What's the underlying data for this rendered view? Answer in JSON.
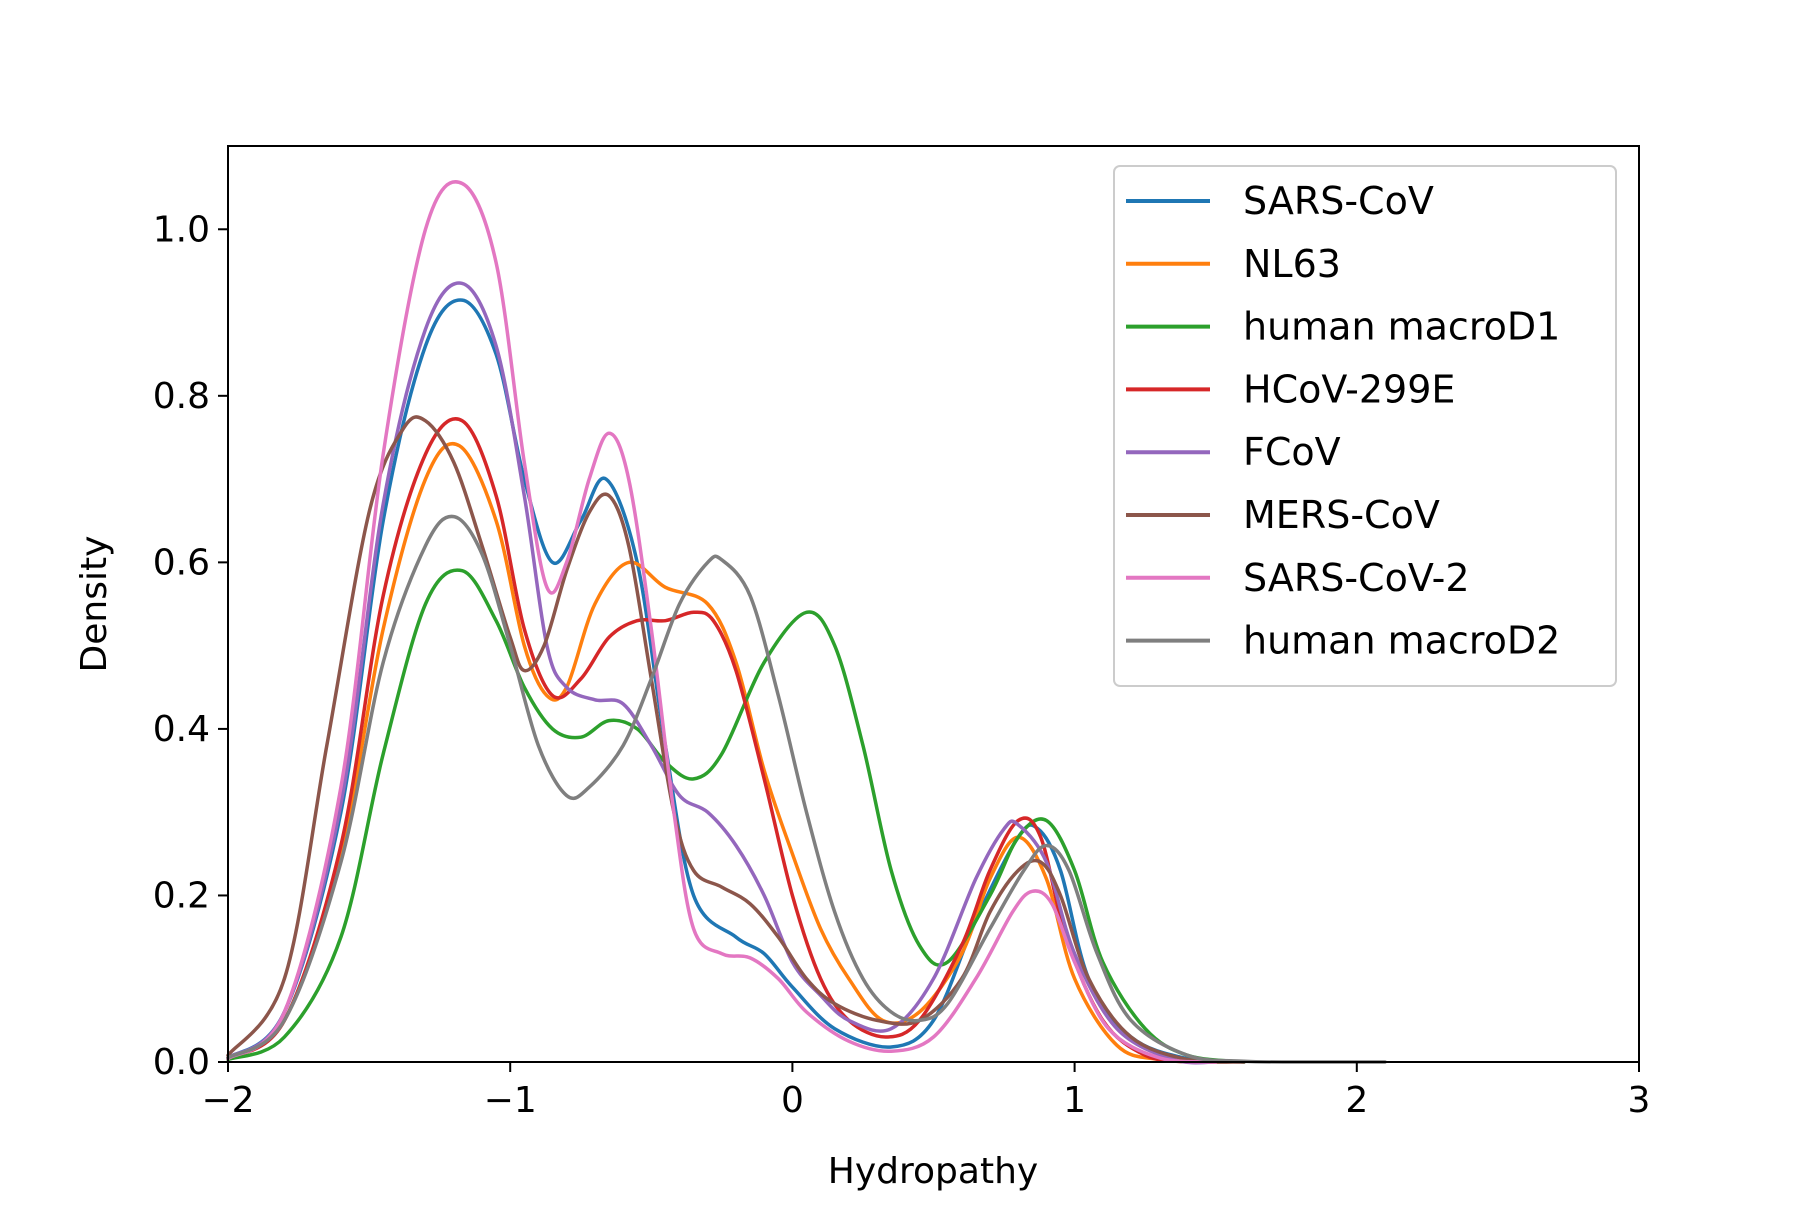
{
  "chart_data": {
    "type": "line",
    "title": "",
    "xlabel": "Hydropathy",
    "ylabel": "Density",
    "xlim": [
      -2,
      3
    ],
    "ylim": [
      0,
      1.1
    ],
    "xticks": [
      -2,
      -1,
      0,
      1,
      2,
      3
    ],
    "xtick_labels": [
      "−2",
      "−1",
      "0",
      "1",
      "2",
      "3"
    ],
    "yticks": [
      0.0,
      0.2,
      0.4,
      0.6,
      0.8,
      1.0
    ],
    "ytick_labels": [
      "0.0",
      "0.2",
      "0.4",
      "0.6",
      "0.8",
      "1.0"
    ],
    "grid": false,
    "legend_position": "top-right",
    "series": [
      {
        "name": "SARS-CoV",
        "color": "#1f77b4",
        "points": [
          [
            -2.0,
            0.005
          ],
          [
            -1.8,
            0.06
          ],
          [
            -1.6,
            0.3
          ],
          [
            -1.45,
            0.65
          ],
          [
            -1.3,
            0.86
          ],
          [
            -1.17,
            0.915
          ],
          [
            -1.05,
            0.85
          ],
          [
            -0.95,
            0.7
          ],
          [
            -0.85,
            0.6
          ],
          [
            -0.75,
            0.65
          ],
          [
            -0.66,
            0.7
          ],
          [
            -0.55,
            0.6
          ],
          [
            -0.45,
            0.38
          ],
          [
            -0.35,
            0.2
          ],
          [
            -0.2,
            0.15
          ],
          [
            -0.1,
            0.13
          ],
          [
            0.0,
            0.09
          ],
          [
            0.15,
            0.04
          ],
          [
            0.35,
            0.018
          ],
          [
            0.5,
            0.05
          ],
          [
            0.65,
            0.17
          ],
          [
            0.8,
            0.27
          ],
          [
            0.87,
            0.28
          ],
          [
            0.95,
            0.23
          ],
          [
            1.05,
            0.1
          ],
          [
            1.2,
            0.03
          ],
          [
            1.4,
            0.004
          ],
          [
            1.6,
            0.0
          ]
        ]
      },
      {
        "name": "NL63",
        "color": "#ff7f0e",
        "points": [
          [
            -2.0,
            0.005
          ],
          [
            -1.8,
            0.05
          ],
          [
            -1.6,
            0.25
          ],
          [
            -1.45,
            0.52
          ],
          [
            -1.3,
            0.7
          ],
          [
            -1.18,
            0.74
          ],
          [
            -1.05,
            0.65
          ],
          [
            -0.95,
            0.5
          ],
          [
            -0.87,
            0.44
          ],
          [
            -0.8,
            0.45
          ],
          [
            -0.7,
            0.55
          ],
          [
            -0.58,
            0.6
          ],
          [
            -0.45,
            0.57
          ],
          [
            -0.3,
            0.55
          ],
          [
            -0.2,
            0.48
          ],
          [
            -0.1,
            0.35
          ],
          [
            0.0,
            0.25
          ],
          [
            0.1,
            0.16
          ],
          [
            0.2,
            0.1
          ],
          [
            0.32,
            0.05
          ],
          [
            0.45,
            0.06
          ],
          [
            0.6,
            0.13
          ],
          [
            0.7,
            0.22
          ],
          [
            0.8,
            0.27
          ],
          [
            0.9,
            0.22
          ],
          [
            1.0,
            0.1
          ],
          [
            1.15,
            0.02
          ],
          [
            1.3,
            0.003
          ],
          [
            1.5,
            0.0
          ]
        ]
      },
      {
        "name": "human macroD1",
        "color": "#2ca02c",
        "points": [
          [
            -2.0,
            0.003
          ],
          [
            -1.8,
            0.03
          ],
          [
            -1.6,
            0.15
          ],
          [
            -1.45,
            0.37
          ],
          [
            -1.3,
            0.55
          ],
          [
            -1.17,
            0.59
          ],
          [
            -1.05,
            0.53
          ],
          [
            -0.95,
            0.45
          ],
          [
            -0.85,
            0.4
          ],
          [
            -0.75,
            0.39
          ],
          [
            -0.65,
            0.41
          ],
          [
            -0.55,
            0.4
          ],
          [
            -0.45,
            0.36
          ],
          [
            -0.35,
            0.34
          ],
          [
            -0.25,
            0.37
          ],
          [
            -0.1,
            0.48
          ],
          [
            0.05,
            0.54
          ],
          [
            0.15,
            0.5
          ],
          [
            0.25,
            0.38
          ],
          [
            0.35,
            0.23
          ],
          [
            0.45,
            0.14
          ],
          [
            0.55,
            0.12
          ],
          [
            0.7,
            0.2
          ],
          [
            0.8,
            0.27
          ],
          [
            0.9,
            0.29
          ],
          [
            1.0,
            0.23
          ],
          [
            1.1,
            0.12
          ],
          [
            1.25,
            0.04
          ],
          [
            1.4,
            0.008
          ],
          [
            1.6,
            0.0
          ]
        ]
      },
      {
        "name": "HCoV-299E",
        "color": "#d62728",
        "points": [
          [
            -2.0,
            0.005
          ],
          [
            -1.8,
            0.05
          ],
          [
            -1.6,
            0.26
          ],
          [
            -1.45,
            0.56
          ],
          [
            -1.3,
            0.73
          ],
          [
            -1.17,
            0.77
          ],
          [
            -1.05,
            0.68
          ],
          [
            -0.95,
            0.52
          ],
          [
            -0.85,
            0.44
          ],
          [
            -0.75,
            0.46
          ],
          [
            -0.65,
            0.51
          ],
          [
            -0.55,
            0.53
          ],
          [
            -0.45,
            0.53
          ],
          [
            -0.35,
            0.54
          ],
          [
            -0.28,
            0.53
          ],
          [
            -0.2,
            0.47
          ],
          [
            -0.1,
            0.34
          ],
          [
            0.0,
            0.2
          ],
          [
            0.1,
            0.1
          ],
          [
            0.2,
            0.05
          ],
          [
            0.33,
            0.03
          ],
          [
            0.45,
            0.05
          ],
          [
            0.6,
            0.14
          ],
          [
            0.7,
            0.23
          ],
          [
            0.8,
            0.29
          ],
          [
            0.88,
            0.27
          ],
          [
            0.97,
            0.15
          ],
          [
            1.1,
            0.05
          ],
          [
            1.25,
            0.008
          ],
          [
            1.4,
            0.0
          ]
        ]
      },
      {
        "name": "FCoV",
        "color": "#9467bd",
        "points": [
          [
            -2.0,
            0.005
          ],
          [
            -1.8,
            0.06
          ],
          [
            -1.6,
            0.31
          ],
          [
            -1.45,
            0.67
          ],
          [
            -1.3,
            0.88
          ],
          [
            -1.17,
            0.935
          ],
          [
            -1.05,
            0.86
          ],
          [
            -0.95,
            0.68
          ],
          [
            -0.87,
            0.5
          ],
          [
            -0.8,
            0.45
          ],
          [
            -0.7,
            0.435
          ],
          [
            -0.6,
            0.43
          ],
          [
            -0.5,
            0.38
          ],
          [
            -0.4,
            0.32
          ],
          [
            -0.3,
            0.3
          ],
          [
            -0.2,
            0.26
          ],
          [
            -0.1,
            0.2
          ],
          [
            0.0,
            0.12
          ],
          [
            0.1,
            0.08
          ],
          [
            0.2,
            0.05
          ],
          [
            0.35,
            0.04
          ],
          [
            0.5,
            0.1
          ],
          [
            0.65,
            0.22
          ],
          [
            0.75,
            0.28
          ],
          [
            0.8,
            0.285
          ],
          [
            0.9,
            0.24
          ],
          [
            1.0,
            0.13
          ],
          [
            1.15,
            0.04
          ],
          [
            1.35,
            0.003
          ],
          [
            1.5,
            0.0
          ]
        ]
      },
      {
        "name": "MERS-CoV",
        "color": "#8c564b",
        "points": [
          [
            -2.0,
            0.008
          ],
          [
            -1.8,
            0.1
          ],
          [
            -1.65,
            0.38
          ],
          [
            -1.5,
            0.66
          ],
          [
            -1.38,
            0.76
          ],
          [
            -1.3,
            0.77
          ],
          [
            -1.2,
            0.72
          ],
          [
            -1.1,
            0.62
          ],
          [
            -1.0,
            0.51
          ],
          [
            -0.95,
            0.47
          ],
          [
            -0.88,
            0.5
          ],
          [
            -0.8,
            0.59
          ],
          [
            -0.72,
            0.66
          ],
          [
            -0.65,
            0.68
          ],
          [
            -0.58,
            0.62
          ],
          [
            -0.5,
            0.46
          ],
          [
            -0.42,
            0.3
          ],
          [
            -0.35,
            0.23
          ],
          [
            -0.25,
            0.21
          ],
          [
            -0.15,
            0.19
          ],
          [
            -0.05,
            0.15
          ],
          [
            0.05,
            0.1
          ],
          [
            0.15,
            0.07
          ],
          [
            0.3,
            0.05
          ],
          [
            0.45,
            0.05
          ],
          [
            0.6,
            0.1
          ],
          [
            0.7,
            0.18
          ],
          [
            0.8,
            0.23
          ],
          [
            0.88,
            0.24
          ],
          [
            0.95,
            0.2
          ],
          [
            1.05,
            0.1
          ],
          [
            1.2,
            0.03
          ],
          [
            1.4,
            0.003
          ],
          [
            1.6,
            0.0
          ]
        ]
      },
      {
        "name": "SARS-CoV-2",
        "color": "#e377c2",
        "points": [
          [
            -2.0,
            0.004
          ],
          [
            -1.8,
            0.06
          ],
          [
            -1.6,
            0.33
          ],
          [
            -1.45,
            0.73
          ],
          [
            -1.3,
            1.0
          ],
          [
            -1.17,
            1.055
          ],
          [
            -1.05,
            0.96
          ],
          [
            -0.95,
            0.72
          ],
          [
            -0.87,
            0.57
          ],
          [
            -0.8,
            0.6
          ],
          [
            -0.72,
            0.7
          ],
          [
            -0.65,
            0.755
          ],
          [
            -0.58,
            0.7
          ],
          [
            -0.5,
            0.52
          ],
          [
            -0.42,
            0.3
          ],
          [
            -0.35,
            0.16
          ],
          [
            -0.25,
            0.13
          ],
          [
            -0.15,
            0.125
          ],
          [
            -0.05,
            0.1
          ],
          [
            0.05,
            0.06
          ],
          [
            0.2,
            0.025
          ],
          [
            0.35,
            0.013
          ],
          [
            0.5,
            0.03
          ],
          [
            0.65,
            0.1
          ],
          [
            0.78,
            0.18
          ],
          [
            0.85,
            0.205
          ],
          [
            0.92,
            0.19
          ],
          [
            1.0,
            0.12
          ],
          [
            1.12,
            0.04
          ],
          [
            1.3,
            0.005
          ],
          [
            1.5,
            0.0
          ]
        ]
      },
      {
        "name": "human macroD2",
        "color": "#7f7f7f",
        "points": [
          [
            -2.0,
            0.005
          ],
          [
            -1.8,
            0.05
          ],
          [
            -1.6,
            0.24
          ],
          [
            -1.45,
            0.48
          ],
          [
            -1.3,
            0.62
          ],
          [
            -1.2,
            0.655
          ],
          [
            -1.1,
            0.61
          ],
          [
            -1.0,
            0.5
          ],
          [
            -0.9,
            0.38
          ],
          [
            -0.8,
            0.32
          ],
          [
            -0.72,
            0.33
          ],
          [
            -0.6,
            0.38
          ],
          [
            -0.5,
            0.46
          ],
          [
            -0.4,
            0.55
          ],
          [
            -0.3,
            0.6
          ],
          [
            -0.25,
            0.603
          ],
          [
            -0.15,
            0.56
          ],
          [
            -0.05,
            0.44
          ],
          [
            0.05,
            0.3
          ],
          [
            0.15,
            0.18
          ],
          [
            0.25,
            0.1
          ],
          [
            0.35,
            0.06
          ],
          [
            0.45,
            0.05
          ],
          [
            0.55,
            0.07
          ],
          [
            0.7,
            0.16
          ],
          [
            0.82,
            0.23
          ],
          [
            0.9,
            0.26
          ],
          [
            0.98,
            0.23
          ],
          [
            1.08,
            0.13
          ],
          [
            1.2,
            0.05
          ],
          [
            1.4,
            0.008
          ],
          [
            1.6,
            0.001
          ],
          [
            1.8,
            0.0
          ],
          [
            2.1,
            0.0
          ]
        ]
      }
    ]
  }
}
